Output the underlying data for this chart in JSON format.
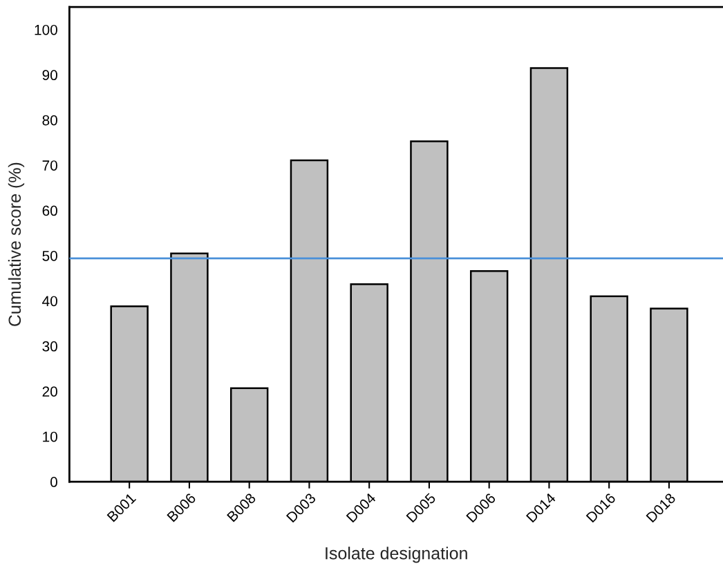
{
  "chart_data": {
    "type": "bar",
    "xlabel": "Isolate designation",
    "ylabel": "Cumulative score (%)",
    "categories": [
      "B001",
      "B006",
      "B008",
      "D003",
      "D004",
      "D005",
      "D006",
      "D014",
      "D016",
      "D018"
    ],
    "values": [
      38.8,
      50.5,
      20.7,
      71.1,
      43.7,
      75.3,
      46.6,
      91.5,
      41.0,
      38.3
    ],
    "color": "#c0c0c0",
    "ylim": [
      0,
      105
    ],
    "yticks": [
      0,
      10,
      20,
      30,
      40,
      50,
      60,
      70,
      80,
      90,
      100
    ],
    "ref_lines": [
      {
        "axis": "y",
        "value": 49.4,
        "color": "#4a90d9",
        "line_style": "solid"
      }
    ],
    "grid": false,
    "legend": false
  }
}
